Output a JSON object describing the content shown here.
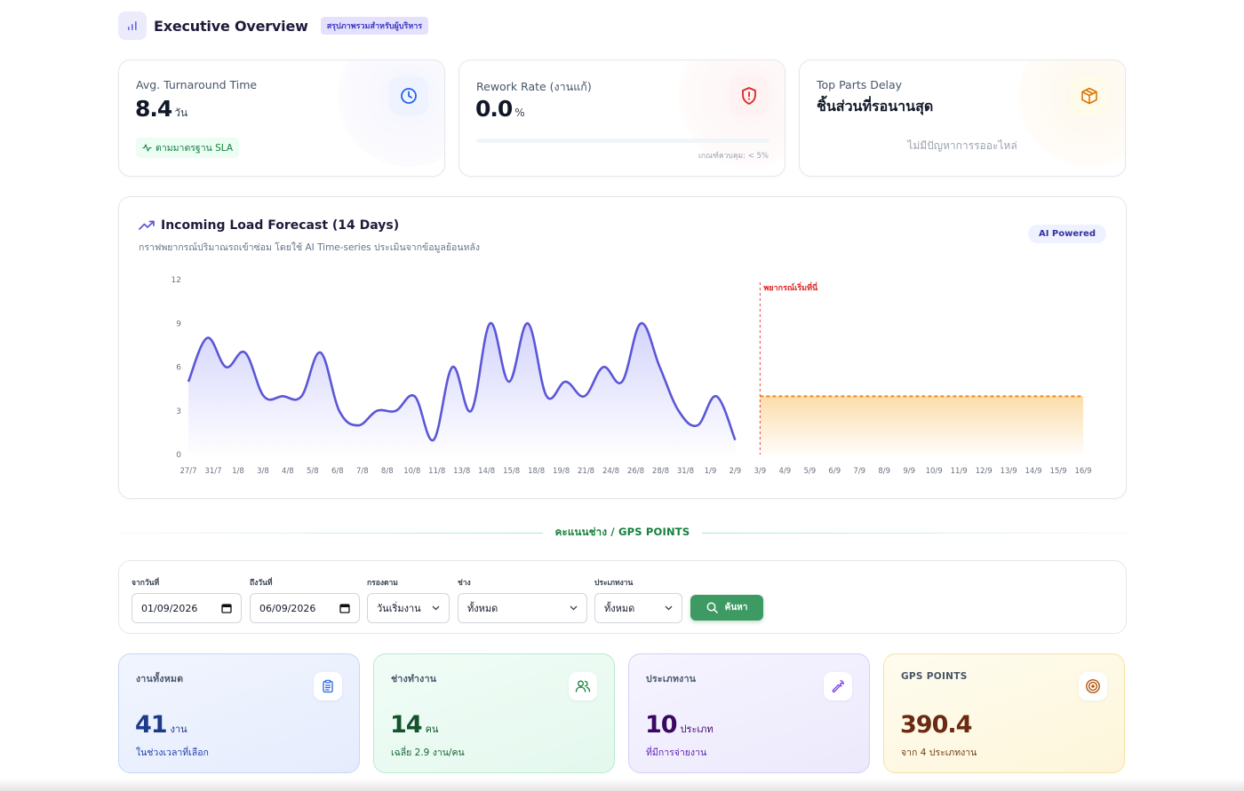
{
  "header": {
    "title": "Executive Overview",
    "badge": "สรุปภาพรวมสำหรับผู้บริหาร",
    "icon": "bar-chart-icon"
  },
  "kpis": {
    "turnaround": {
      "label": "Avg. Turnaround Time",
      "value": "8.4",
      "unit": "วัน",
      "badge": "ตามมาตรฐาน SLA",
      "icon": "clock-icon"
    },
    "rework": {
      "label": "Rework Rate (งานแก้)",
      "value": "0.0",
      "unit": "%",
      "progress": 0,
      "threshold": "เกณฑ์ควบคุม: < 5%",
      "icon": "shield-alert-icon"
    },
    "parts": {
      "label": "Top Parts Delay",
      "title": "ชิ้นส่วนที่รอนานสุด",
      "empty": "ไม่มีปัญหาการรออะไหล่",
      "icon": "package-icon"
    }
  },
  "forecast": {
    "title": "Incoming Load Forecast (14 Days)",
    "subtitle": "กราฟพยากรณ์ปริมาณรถเข้าซ่อม โดยใช้ AI Time-series ประเมินจากข้อมูลย้อนหลัง",
    "badge": "AI Powered",
    "forecast_marker": "พยากรณ์เริ่มที่นี่"
  },
  "chart_data": {
    "type": "line",
    "ylim": [
      0,
      12
    ],
    "y_ticks": [
      0,
      3,
      6,
      9,
      12
    ],
    "x_tick_labels": [
      "27/7",
      "31/7",
      "1/8",
      "3/8",
      "4/8",
      "5/8",
      "6/8",
      "7/8",
      "8/8",
      "10/8",
      "11/8",
      "13/8",
      "14/8",
      "15/8",
      "18/8",
      "19/8",
      "21/8",
      "24/8",
      "26/8",
      "28/8",
      "31/8",
      "1/9",
      "2/9",
      "3/9",
      "4/9",
      "5/9",
      "6/9",
      "7/9",
      "8/9",
      "9/9",
      "10/9",
      "11/9",
      "12/9",
      "13/9",
      "14/9",
      "15/9",
      "16/9"
    ],
    "series": [
      {
        "kind": "actual",
        "values": [
          5,
          8,
          6,
          7,
          4,
          4,
          4,
          7,
          3,
          2,
          3,
          3,
          4,
          1,
          6,
          3,
          9,
          5,
          9,
          4,
          5,
          4,
          6,
          5,
          9,
          6,
          3,
          2,
          4,
          1
        ]
      },
      {
        "kind": "forecast",
        "values": [
          4,
          4,
          4,
          4,
          4,
          4,
          4,
          4,
          4,
          4,
          4,
          4,
          4,
          4
        ]
      }
    ],
    "grid": false
  },
  "section": {
    "title": "คะแนนช่าง / GPS POINTS"
  },
  "filters": {
    "from": {
      "label": "จากวันที่",
      "value": "01/09/2026"
    },
    "to": {
      "label": "ถึงวันที่",
      "value": "06/09/2026"
    },
    "filter_by": {
      "label": "กรองตาม",
      "value": "วันเริ่มงาน"
    },
    "technician": {
      "label": "ช่าง",
      "value": "ทั้งหมด"
    },
    "job_type": {
      "label": "ประเภทงาน",
      "value": "ทั้งหมด"
    },
    "search_label": "ค้นหา"
  },
  "stats": {
    "jobs": {
      "label": "งานทั้งหมด",
      "value": "41",
      "unit": "งาน",
      "sub": "ในช่วงเวลาที่เลือก",
      "icon": "clipboard-icon"
    },
    "techs": {
      "label": "ช่างทำงาน",
      "value": "14",
      "unit": "คน",
      "sub": "เฉลี่ย 2.9 งาน/คน",
      "icon": "users-icon"
    },
    "types": {
      "label": "ประเภทงาน",
      "value": "10",
      "unit": "ประเภท",
      "sub": "ที่มีการจ่ายงาน",
      "icon": "wrench-icon"
    },
    "gps": {
      "label": "GPS POINTS",
      "value": "390.4",
      "unit": "",
      "sub": "จาก 4 ประเภทงาน",
      "icon": "target-icon"
    }
  },
  "colors": {
    "accent": "#5b57d6",
    "forecast": "#f59e0b",
    "success": "#15803d"
  }
}
